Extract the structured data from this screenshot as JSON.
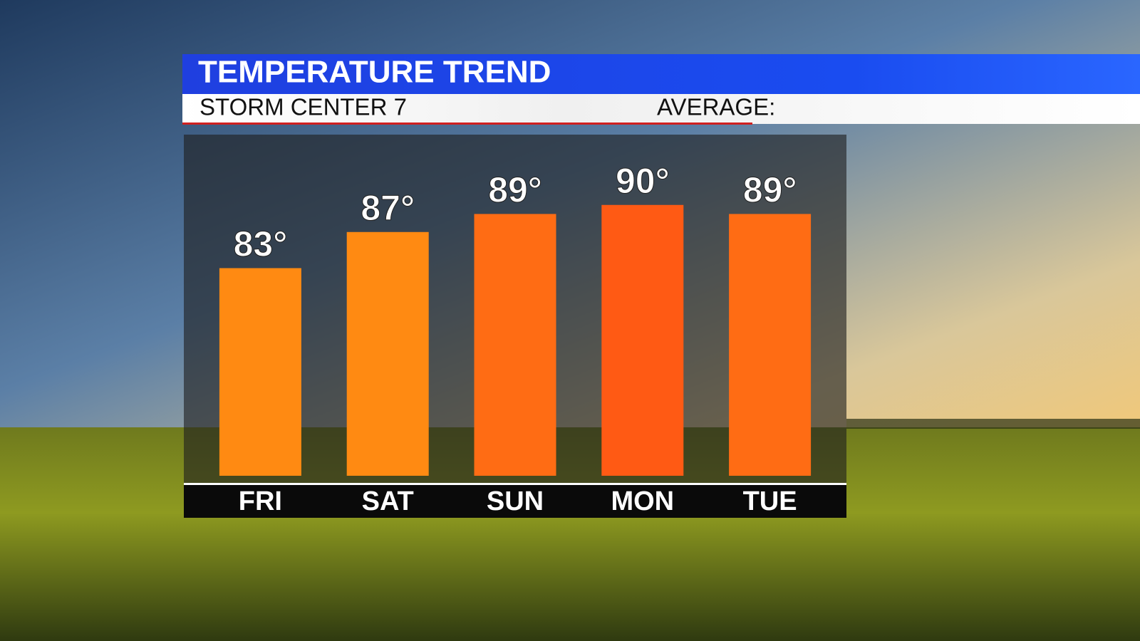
{
  "chart_data": {
    "type": "bar",
    "title": "TEMPERATURE TREND",
    "subtitle": "STORM CENTER 7",
    "annotation": "AVERAGE:",
    "categories": [
      "FRI",
      "SAT",
      "SUN",
      "MON",
      "TUE"
    ],
    "values": [
      83,
      87,
      89,
      90,
      89
    ],
    "value_labels": [
      "83°",
      "87°",
      "89°",
      "90°",
      "89°"
    ],
    "colors": [
      "#ff8a12",
      "#ff8a12",
      "#ff6c14",
      "#ff5a14",
      "#ff6c14"
    ],
    "ylim": [
      60,
      100
    ]
  }
}
